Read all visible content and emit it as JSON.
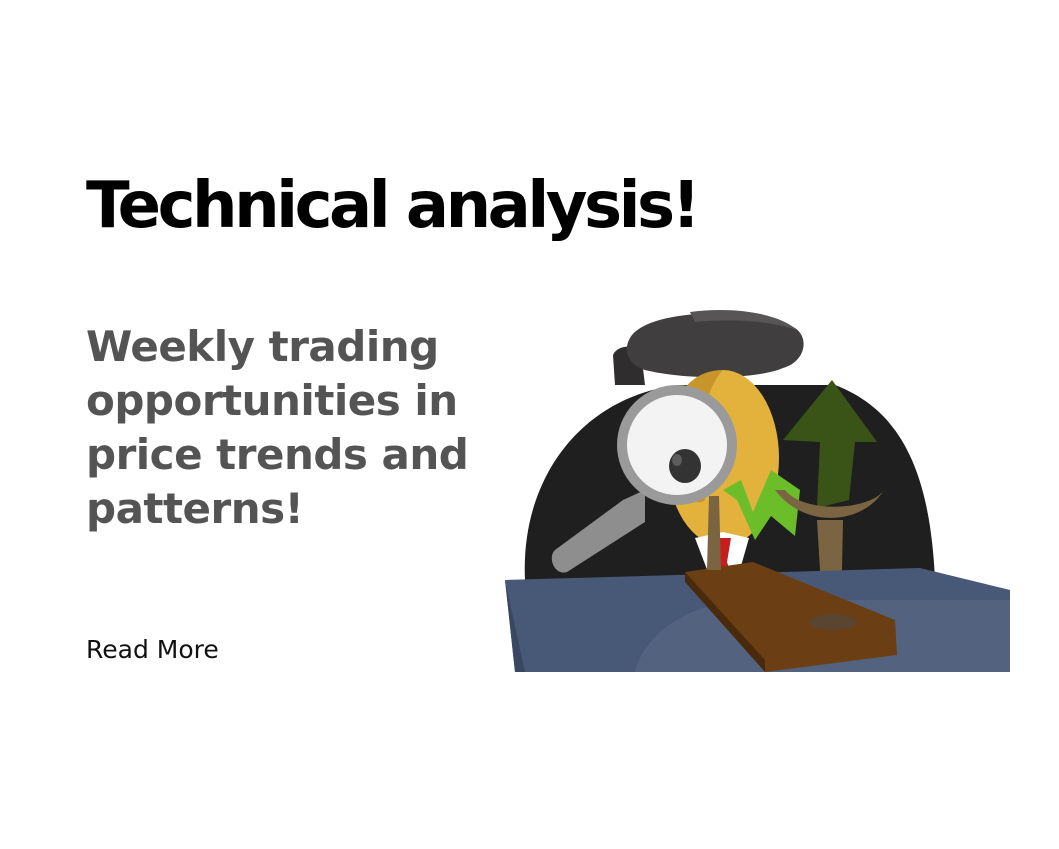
{
  "card": {
    "title": "Technical analysis!",
    "subtitle": "Weekly trading opportunities in price trends and patterns!",
    "cta_label": "Read More"
  },
  "illustration": {
    "subject": "detective-with-magnifying-glass-and-rising-arrow",
    "colors": {
      "coat": "#1f1f1f",
      "hat": "#3f3d3e",
      "face": "#e3b23c",
      "desk": "#485978",
      "arrow": "#3a5417",
      "arrow_light": "#6cbd2a",
      "wood": "#6b3e14",
      "tie": "#c41e1e"
    }
  }
}
